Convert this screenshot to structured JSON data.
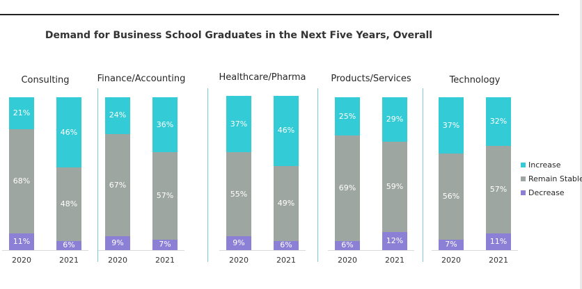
{
  "chart_data": {
    "type": "bar",
    "stacked": true,
    "title": "Demand for Business School Graduates in the Next Five Years, Overall",
    "value_suffix": "%",
    "legend_position": "right",
    "series": [
      {
        "name": "Increase",
        "color": "#33ccd6"
      },
      {
        "name": "Remain Stable",
        "color": "#9ea6a2"
      },
      {
        "name": "Decrease",
        "color": "#8b7fd6"
      }
    ],
    "panels": [
      {
        "title": "Consulting",
        "categories": [
          "2020",
          "2021"
        ],
        "values": {
          "Increase": [
            21,
            46
          ],
          "Remain Stable": [
            68,
            48
          ],
          "Decrease": [
            11,
            6
          ]
        }
      },
      {
        "title": "Finance/Accounting",
        "categories": [
          "2020",
          "2021"
        ],
        "values": {
          "Increase": [
            24,
            36
          ],
          "Remain Stable": [
            67,
            57
          ],
          "Decrease": [
            9,
            7
          ]
        }
      },
      {
        "title": "Healthcare/Pharma",
        "categories": [
          "2020",
          "2021"
        ],
        "values": {
          "Increase": [
            37,
            46
          ],
          "Remain Stable": [
            55,
            49
          ],
          "Decrease": [
            9,
            6
          ]
        }
      },
      {
        "title": "Products/Services",
        "categories": [
          "2020",
          "2021"
        ],
        "values": {
          "Increase": [
            25,
            29
          ],
          "Remain Stable": [
            69,
            59
          ],
          "Decrease": [
            6,
            12
          ]
        }
      },
      {
        "title": "Technology",
        "categories": [
          "2020",
          "2021"
        ],
        "values": {
          "Increase": [
            37,
            32
          ],
          "Remain Stable": [
            56,
            57
          ],
          "Decrease": [
            7,
            11
          ]
        }
      }
    ]
  }
}
